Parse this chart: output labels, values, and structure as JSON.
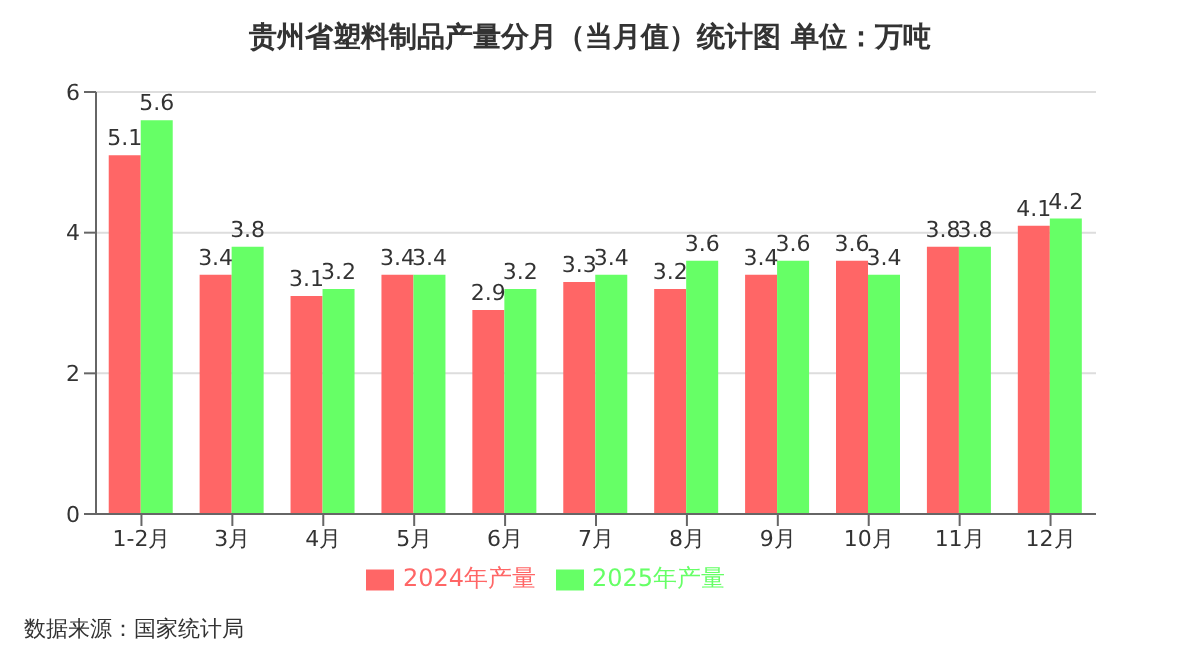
{
  "chart_data": {
    "type": "bar",
    "title": "贵州省塑料制品产量分月（当月值）统计图 单位：万吨",
    "categories": [
      "1-2月",
      "3月",
      "4月",
      "5月",
      "6月",
      "7月",
      "8月",
      "9月",
      "10月",
      "11月",
      "12月"
    ],
    "series": [
      {
        "name": "2024年产量",
        "color": "#ff6666",
        "values": [
          5.1,
          3.4,
          3.1,
          3.4,
          2.9,
          3.3,
          3.2,
          3.4,
          3.6,
          3.8,
          4.1
        ]
      },
      {
        "name": "2025年产量",
        "color": "#66ff66",
        "values": [
          5.6,
          3.8,
          3.2,
          3.4,
          3.2,
          3.4,
          3.6,
          3.6,
          3.4,
          3.8,
          4.2
        ]
      }
    ],
    "ylim": [
      0,
      6
    ],
    "yticks": [
      0,
      2,
      4,
      6
    ],
    "grid": "y",
    "legend": "bottom",
    "data_labels": true,
    "annotations": [
      "数据来源：国家统计局"
    ]
  }
}
